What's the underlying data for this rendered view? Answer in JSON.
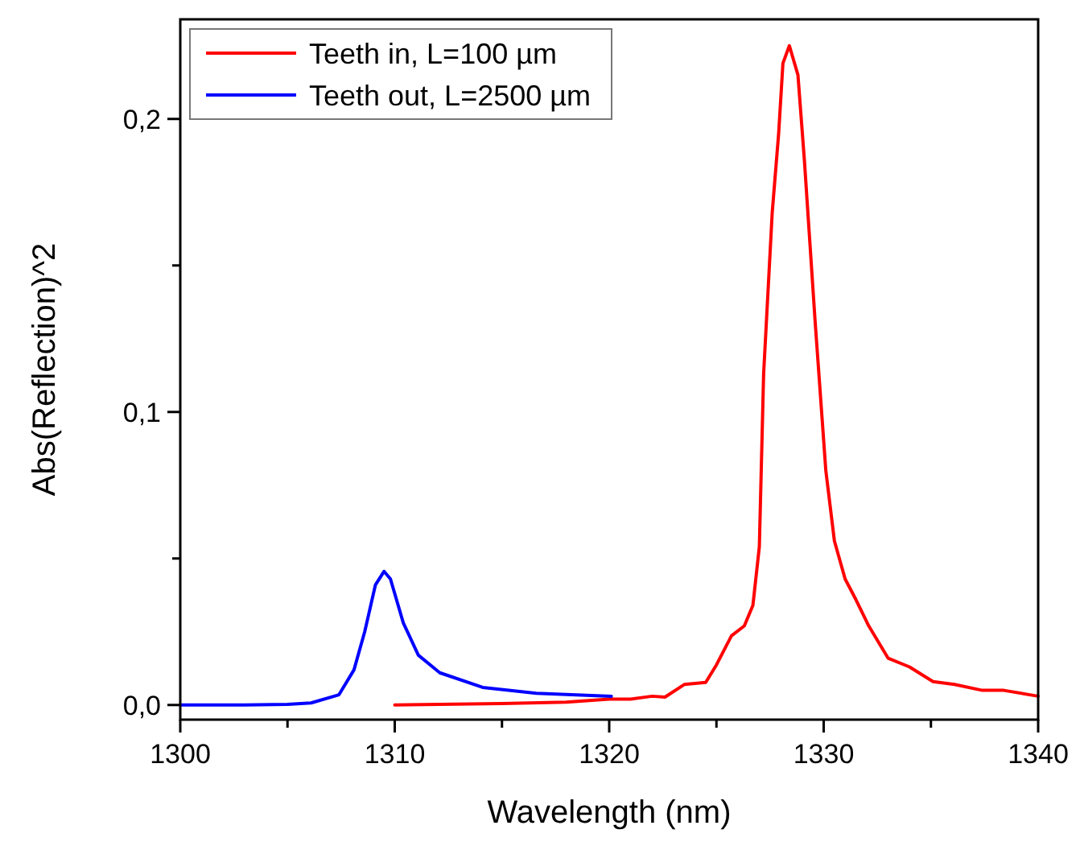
{
  "chart_data": {
    "type": "line",
    "xlabel": "Wavelength (nm)",
    "ylabel": "Abs(Reflection)^2",
    "xlim": [
      1300,
      1340
    ],
    "ylim": [
      -0.005,
      0.234
    ],
    "xticks": [
      1300,
      {
        "value": 1305,
        "label": null
      },
      1310,
      {
        "value": 1315,
        "label": null
      },
      1320,
      {
        "value": 1325,
        "label": null
      },
      1330,
      {
        "value": 1335,
        "label": null
      },
      1340
    ],
    "yticks": [
      {
        "value": 0,
        "label": "0,0"
      },
      {
        "value": 0.05,
        "label": null
      },
      {
        "value": 0.1,
        "label": "0,1"
      },
      {
        "value": 0.15,
        "label": null
      },
      {
        "value": 0.2,
        "label": "0,2"
      }
    ],
    "grid": false,
    "legend": "top left",
    "marker": "none",
    "line_style": "solid",
    "series": [
      {
        "name": "Teeth in, L=100 µm",
        "color": "#ff0000",
        "x": [
          1310,
          1315,
          1318,
          1320,
          1321,
          1322,
          1322.6,
          1323.5,
          1324.5,
          1325.0,
          1325.7,
          1326.3,
          1326.7,
          1327.0,
          1327.2,
          1327.6,
          1327.9,
          1328.1,
          1328.4,
          1328.8,
          1329.1,
          1329.6,
          1330.1,
          1330.5,
          1331.0,
          1331.5,
          1332.1,
          1333.0,
          1334.0,
          1335.1,
          1336.1,
          1337.4,
          1338.4,
          1340
        ],
        "values": [
          0.0,
          0.0005,
          0.001,
          0.002,
          0.002,
          0.003,
          0.0027,
          0.007,
          0.0077,
          0.0137,
          0.0236,
          0.027,
          0.034,
          0.054,
          0.113,
          0.168,
          0.195,
          0.219,
          0.225,
          0.215,
          0.186,
          0.131,
          0.08,
          0.056,
          0.043,
          0.036,
          0.027,
          0.016,
          0.013,
          0.008,
          0.007,
          0.005,
          0.005,
          0.003
        ]
      },
      {
        "name": "Teeth out, L=2500 µm",
        "color": "#0000ff",
        "x": [
          1300,
          1303,
          1305,
          1306.1,
          1307.4,
          1308.1,
          1308.6,
          1309.1,
          1309.5,
          1309.8,
          1310.4,
          1311.1,
          1312.1,
          1314.1,
          1316.6,
          1320.1
        ],
        "values": [
          0,
          0,
          0.0002,
          0.0007,
          0.0035,
          0.012,
          0.025,
          0.041,
          0.0456,
          0.043,
          0.028,
          0.017,
          0.011,
          0.006,
          0.004,
          0.003
        ]
      }
    ]
  }
}
